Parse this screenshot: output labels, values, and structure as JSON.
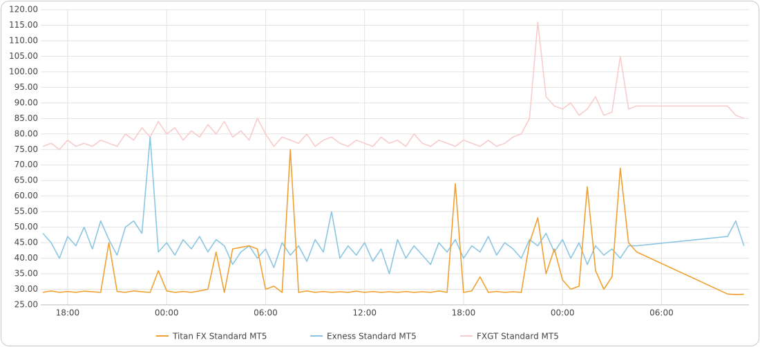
{
  "chart_data": {
    "type": "line",
    "x": [
      16.5,
      17,
      17.5,
      18,
      18.5,
      19,
      19.5,
      20,
      20.5,
      21,
      21.5,
      22,
      22.5,
      23,
      23.5,
      24,
      24.5,
      25,
      25.5,
      26,
      26.5,
      27,
      27.5,
      28,
      28.5,
      29,
      29.5,
      30,
      30.5,
      31,
      31.5,
      32,
      32.5,
      33,
      33.5,
      34,
      34.5,
      35,
      35.5,
      36,
      36.5,
      37,
      37.5,
      38,
      38.5,
      39,
      39.5,
      40,
      40.5,
      41,
      41.5,
      42,
      42.5,
      43,
      43.5,
      44,
      44.5,
      45,
      45.5,
      46,
      46.5,
      47,
      47.5,
      48,
      48.5,
      49,
      49.5,
      50,
      50.5,
      51,
      51.5,
      52,
      52.5,
      58,
      58.5,
      59
    ],
    "xlim": [
      16.37,
      59.3
    ],
    "xticks": [
      {
        "value": 18,
        "label": "18:00"
      },
      {
        "value": 24,
        "label": "00:00"
      },
      {
        "value": 30,
        "label": "06:00"
      },
      {
        "value": 36,
        "label": "12:00"
      },
      {
        "value": 42,
        "label": "18:00"
      },
      {
        "value": 48,
        "label": "00:00"
      },
      {
        "value": 54,
        "label": "06:00"
      }
    ],
    "ylim": [
      25,
      120
    ],
    "yticks": [
      {
        "value": 25,
        "label": "25.00"
      },
      {
        "value": 30,
        "label": "30.00"
      },
      {
        "value": 35,
        "label": "35.00"
      },
      {
        "value": 40,
        "label": "40.00"
      },
      {
        "value": 45,
        "label": "45.00"
      },
      {
        "value": 50,
        "label": "50.00"
      },
      {
        "value": 55,
        "label": "55.00"
      },
      {
        "value": 60,
        "label": "60.00"
      },
      {
        "value": 65,
        "label": "65.00"
      },
      {
        "value": 70,
        "label": "70.00"
      },
      {
        "value": 75,
        "label": "75.00"
      },
      {
        "value": 80,
        "label": "80.00"
      },
      {
        "value": 85,
        "label": "85.00"
      },
      {
        "value": 90,
        "label": "90.00"
      },
      {
        "value": 95,
        "label": "95.00"
      },
      {
        "value": 100,
        "label": "100.00"
      },
      {
        "value": 105,
        "label": "105.00"
      },
      {
        "value": 110,
        "label": "110.00"
      },
      {
        "value": 115,
        "label": "115.00"
      },
      {
        "value": 120,
        "label": "120.00"
      }
    ],
    "grid": true,
    "legend": "bottom",
    "series": [
      {
        "name": "Titan FX Standard MT5",
        "color": "#f0a030",
        "values": [
          29,
          29.5,
          29,
          29.3,
          29,
          29.4,
          29.2,
          29,
          45,
          29.3,
          29,
          29.5,
          29.2,
          29,
          36,
          29.5,
          29,
          29.3,
          29,
          29.5,
          30,
          42,
          29,
          43,
          43.5,
          44,
          43,
          30,
          31,
          29,
          75,
          29,
          29.5,
          29,
          29.3,
          29,
          29.2,
          29,
          29.4,
          29,
          29.3,
          29,
          29.2,
          29,
          29.3,
          29,
          29.2,
          29,
          29.5,
          29,
          64,
          29,
          29.5,
          34,
          29,
          29.3,
          29,
          29.2,
          29,
          45,
          53,
          35,
          43,
          33,
          30,
          31,
          63,
          36,
          30,
          34,
          69,
          45,
          42,
          28.5,
          28.3,
          28.4
        ]
      },
      {
        "name": "Exness Standard MT5",
        "color": "#8ac6e2",
        "values": [
          48,
          45,
          40,
          47,
          44,
          50,
          43,
          52,
          46,
          41,
          50,
          52,
          48,
          79,
          42,
          45,
          41,
          46,
          43,
          47,
          42,
          46,
          44,
          38,
          42,
          44,
          40,
          43,
          37,
          45,
          41,
          44,
          39,
          46,
          42,
          55,
          40,
          44,
          41,
          45,
          39,
          43,
          35,
          46,
          40,
          44,
          41,
          38,
          45,
          42,
          46,
          40,
          44,
          42,
          47,
          41,
          45,
          43,
          40,
          46,
          44,
          48,
          42,
          46,
          40,
          45,
          38,
          44,
          41,
          43,
          40,
          44,
          44,
          47,
          52,
          44
        ]
      },
      {
        "name": "FXGT Standard MT5",
        "color": "#f8cccc",
        "values": [
          76,
          77,
          75,
          78,
          76,
          77,
          76,
          78,
          77,
          76,
          80,
          78,
          82,
          79,
          84,
          80,
          82,
          78,
          81,
          79,
          83,
          80,
          84,
          79,
          81,
          78,
          85,
          80,
          76,
          79,
          78,
          77,
          80,
          76,
          78,
          79,
          77,
          76,
          78,
          77,
          76,
          79,
          77,
          78,
          76,
          80,
          77,
          76,
          78,
          77,
          76,
          78,
          77,
          76,
          78,
          76,
          77,
          79,
          80,
          85,
          116,
          92,
          89,
          88,
          90,
          86,
          88,
          92,
          86,
          87,
          105,
          88,
          89,
          89,
          86,
          85
        ]
      }
    ]
  }
}
